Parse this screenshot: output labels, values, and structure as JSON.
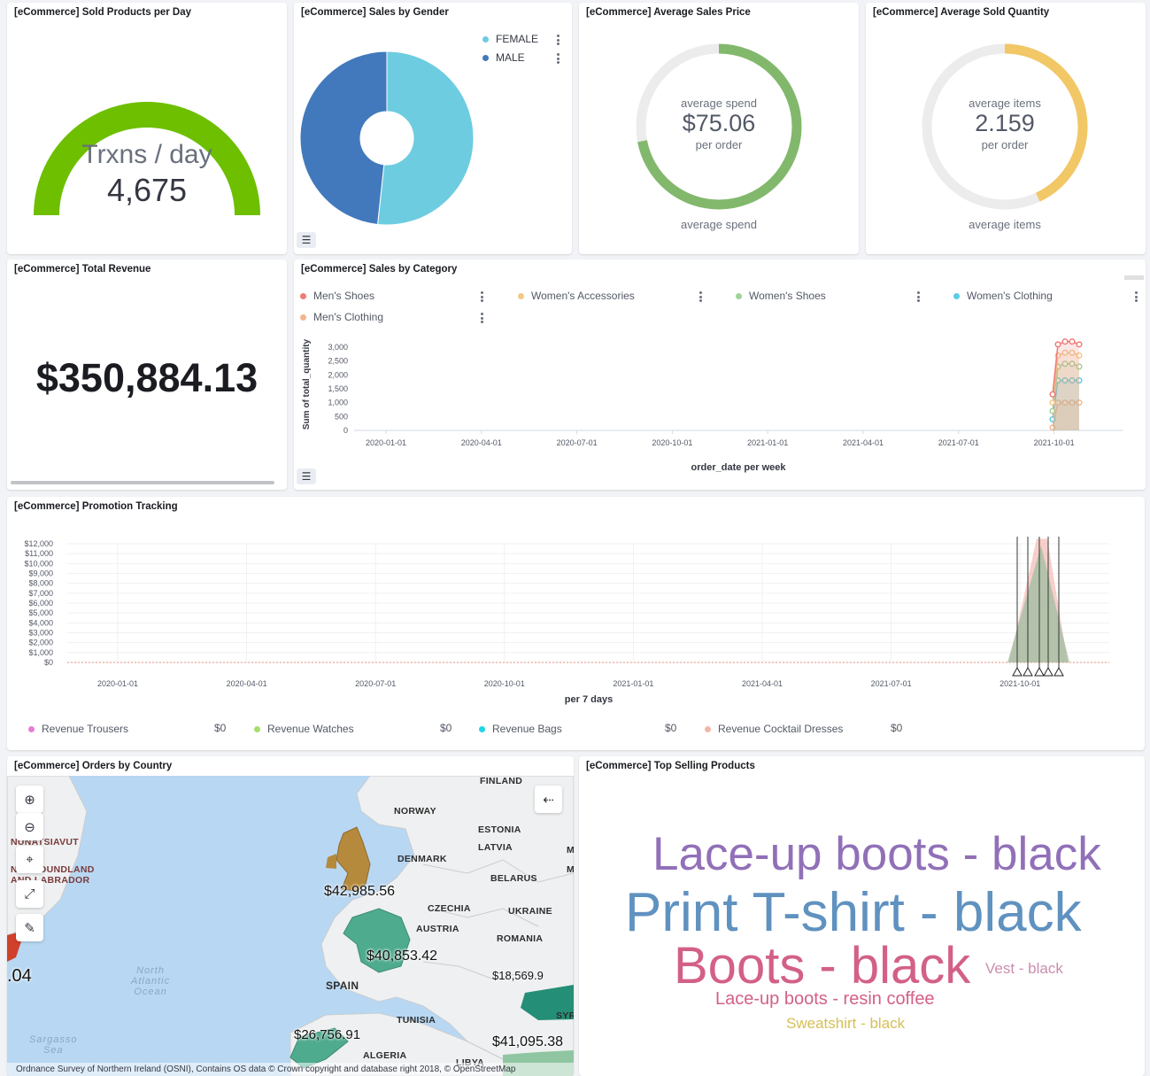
{
  "panels": {
    "sold_per_day": {
      "title": "[eCommerce] Sold Products per Day",
      "label": "Trxns / day",
      "value": "4,675",
      "color": "#6dbf00"
    },
    "gender": {
      "title": "[eCommerce] Sales by Gender",
      "legend": [
        {
          "name": "FEMALE",
          "color": "#6dcce0"
        },
        {
          "name": "MALE",
          "color": "#4279bc"
        }
      ]
    },
    "avg_price": {
      "title": "[eCommerce] Average Sales Price",
      "top": "average spend",
      "value": "$75.06",
      "sub": "per order",
      "bottom": "average spend",
      "fraction": 0.72,
      "color": "#82b86c"
    },
    "avg_qty": {
      "title": "[eCommerce] Average Sold Quantity",
      "top": "average items",
      "value": "2.159",
      "sub": "per order",
      "bottom": "average items",
      "fraction": 0.43,
      "color": "#f2c766"
    },
    "revenue": {
      "title": "[eCommerce] Total Revenue",
      "value": "$350,884.13"
    },
    "category": {
      "title": "[eCommerce] Sales by Category",
      "legend": [
        {
          "name": "Men's Shoes",
          "color": "#ee7b78"
        },
        {
          "name": "Women's Accessories",
          "color": "#f1c886"
        },
        {
          "name": "Women's Shoes",
          "color": "#9fd39a"
        },
        {
          "name": "Women's Clothing",
          "color": "#5ccbe6"
        },
        {
          "name": "Men's Clothing",
          "color": "#f5b58c"
        }
      ],
      "ylabel": "Sum of total_quantity",
      "xlabel": "order_date per week"
    },
    "promotion": {
      "title": "[eCommerce] Promotion Tracking",
      "xlabel": "per 7 days",
      "legend": [
        {
          "name": "Revenue Trousers",
          "value": "$0",
          "color": "#e87dd6"
        },
        {
          "name": "Revenue Watches",
          "value": "$0",
          "color": "#a7dd6f"
        },
        {
          "name": "Revenue Bags",
          "value": "$0",
          "color": "#1ed6e6"
        },
        {
          "name": "Revenue Cocktail Dresses",
          "value": "$0",
          "color": "#f2b6a8"
        }
      ]
    },
    "map": {
      "title": "[eCommerce] Orders by Country",
      "labels": [
        "FINLAND",
        "NORWAY",
        "ESTONIA",
        "LATVIA",
        "DENMARK",
        "BELARUS",
        "CZECHIA",
        "UKRAINE",
        "AUSTRIA",
        "ROMANIA",
        "SPAIN",
        "TUNISIA",
        "ALGERIA",
        "LIBYA",
        "NUNATSIAVUT",
        "NEWFOUNDLAND AND LABRADOR",
        "SYR",
        "M",
        "M"
      ],
      "values": [
        "$42,985.56",
        "$40,853.42",
        "$18,569.9",
        "$26,756.91",
        "$41,095.38",
        ".04"
      ],
      "ocean": [
        "North",
        "Atlantic",
        "Ocean"
      ],
      "sea": [
        "Sargasso",
        "Sea"
      ],
      "attribution": "Ordnance Survey of Northern Ireland (OSNI), Contains OS data © Crown copyright and database right 2018, © OpenStreetMap"
    },
    "top_products": {
      "title": "[eCommerce] Top Selling Products",
      "words": [
        {
          "text": "Lace-up boots - black",
          "color": "#9170b8"
        },
        {
          "text": "Print T-shirt - black",
          "color": "#6092c0"
        },
        {
          "text": "Boots - black",
          "color": "#d36086"
        },
        {
          "text": "Vest - black",
          "color": "#ca8eae"
        },
        {
          "text": "Lace-up boots - resin coffee",
          "color": "#d36086"
        },
        {
          "text": "Sweatshirt - black",
          "color": "#d6bf57"
        }
      ]
    }
  },
  "chart_data": [
    {
      "type": "pie",
      "title": "[eCommerce] Sales by Gender",
      "categories": [
        "FEMALE",
        "MALE"
      ],
      "values": [
        51.7,
        48.3
      ]
    },
    {
      "type": "line",
      "title": "[eCommerce] Sales by Category",
      "xlabel": "order_date per week",
      "ylabel": "Sum of total_quantity",
      "y_ticks": [
        "3,000",
        "2,500",
        "2,000",
        "1,500",
        "1,000",
        "500",
        "0"
      ],
      "ylim": [
        0,
        3000
      ],
      "x_ticks": [
        "2020-01-01",
        "2020-04-01",
        "2020-07-01",
        "2020-10-01",
        "2021-01-01",
        "2021-04-01",
        "2021-07-01",
        "2021-10-01"
      ],
      "x": [
        "2021-09-27",
        "2021-10-04",
        "2021-10-11",
        "2021-10-18",
        "2021-10-25"
      ],
      "series": [
        {
          "name": "Men's Clothing",
          "values": [
            100,
            1000,
            1000,
            1000,
            1000
          ]
        },
        {
          "name": "Women's Clothing",
          "values": [
            400,
            1800,
            1800,
            1800,
            1800
          ]
        },
        {
          "name": "Women's Shoes",
          "values": [
            700,
            2300,
            2400,
            2400,
            2300
          ]
        },
        {
          "name": "Women's Accessories",
          "values": [
            1000,
            2700,
            2800,
            2800,
            2700
          ]
        },
        {
          "name": "Men's Shoes",
          "values": [
            1300,
            3100,
            3200,
            3200,
            3100
          ]
        }
      ]
    },
    {
      "type": "area",
      "title": "[eCommerce] Promotion Tracking",
      "xlabel": "per 7 days",
      "y_ticks": [
        "$12,000",
        "$11,000",
        "$10,000",
        "$9,000",
        "$8,000",
        "$7,000",
        "$6,000",
        "$5,000",
        "$4,000",
        "$3,000",
        "$2,000",
        "$1,000",
        "$0"
      ],
      "ylim": [
        0,
        12000
      ],
      "x_ticks": [
        "2020-01-01",
        "2020-04-01",
        "2020-07-01",
        "2020-10-01",
        "2021-01-01",
        "2021-04-01",
        "2021-07-01",
        "2021-10-01"
      ],
      "peak": {
        "x": "2021-10-11",
        "values": [
          12500,
          11800
        ]
      }
    }
  ]
}
